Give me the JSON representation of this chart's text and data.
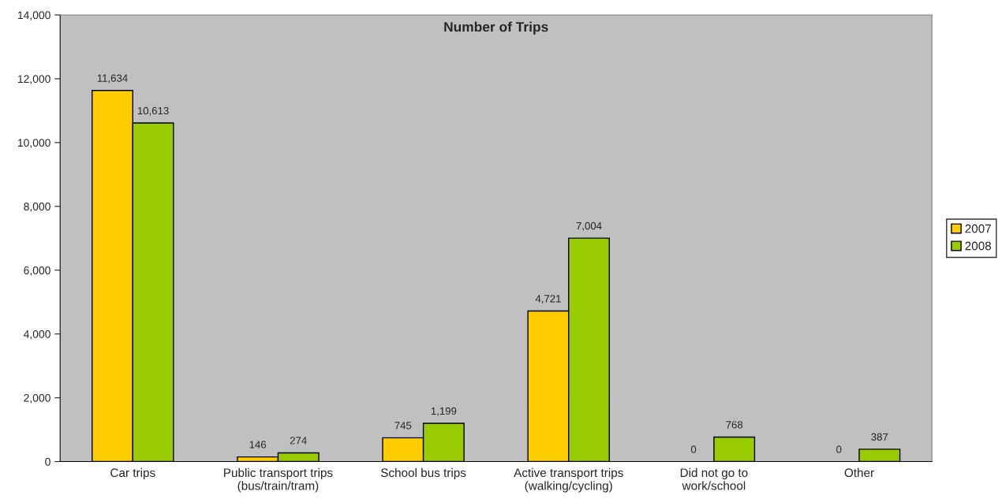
{
  "chart_data": {
    "type": "bar",
    "title": "Number of Trips",
    "categories": [
      "Car trips",
      "Public transport trips\n(bus/train/tram)",
      "School bus trips",
      "Active transport trips\n(walking/cycling)",
      "Did not go to\nwork/school",
      "Other"
    ],
    "series": [
      {
        "name": "2007",
        "color": "#ffcc00",
        "values": [
          11634,
          146,
          745,
          4721,
          0,
          0
        ]
      },
      {
        "name": "2008",
        "color": "#99cc00",
        "values": [
          10613,
          274,
          1199,
          7004,
          768,
          387
        ]
      }
    ],
    "ylim": [
      0,
      14000
    ],
    "yticks": [
      {
        "value": 0,
        "label": "0"
      },
      {
        "value": 2000,
        "label": "2,000"
      },
      {
        "value": 4000,
        "label": "4,000"
      },
      {
        "value": 6000,
        "label": "6,000"
      },
      {
        "value": 8000,
        "label": "8,000"
      },
      {
        "value": 10000,
        "label": "10,000"
      },
      {
        "value": 12000,
        "label": "12,000"
      },
      {
        "value": 14000,
        "label": "14,000"
      }
    ],
    "value_labels": [
      [
        "11,634",
        "146",
        "745",
        "4,721",
        "0",
        "0"
      ],
      [
        "10,613",
        "274",
        "1,199",
        "7,004",
        "768",
        "387"
      ]
    ],
    "grid": false,
    "legend": "right"
  }
}
